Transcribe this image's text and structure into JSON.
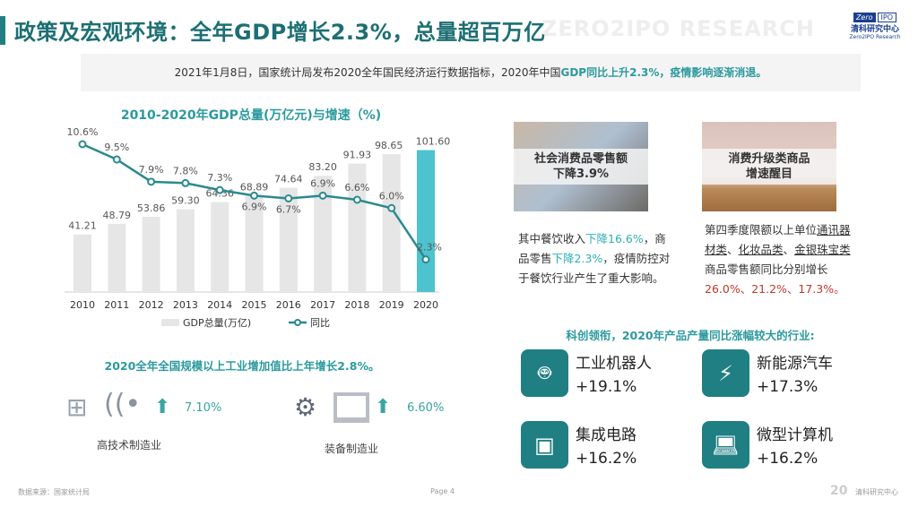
{
  "header": {
    "watermark": "ZERO2IPO RESEARCH",
    "title_part1": "政策及宏观环境：",
    "title_part2": "全年GDP增长2.3%，总量超百万亿",
    "logo": {
      "left": "Zero",
      "right": "IPO",
      "cn": "清科研究中心",
      "en": "Zero2IPO Research"
    }
  },
  "banner": {
    "text": "2021年1月8日，国家统计局发布2020全年国民经济运行数据指标，2020年中国",
    "highlight": "GDP同比上升2.3%，疫情影响逐渐消退。"
  },
  "chart_data": {
    "type": "bar",
    "title": "2010-2020年GDP总量(万亿元)与增速（%)",
    "categories": [
      "2010",
      "2011",
      "2012",
      "2013",
      "2014",
      "2015",
      "2016",
      "2017",
      "2018",
      "2019",
      "2020"
    ],
    "series": [
      {
        "name": "GDP总量(万亿)",
        "type": "bar",
        "values": [
          41.21,
          48.79,
          53.86,
          59.3,
          64.36,
          68.89,
          74.64,
          83.2,
          91.93,
          98.65,
          101.6
        ],
        "labels": [
          "41.21",
          "48.79",
          "53.86",
          "59.30",
          "64.36",
          "68.89",
          "74.64",
          "83.20",
          "91.93",
          "98.65",
          "101.60"
        ],
        "color": "#e6e6e6",
        "highlight_color": "#4ec3cf"
      },
      {
        "name": "同比",
        "type": "line",
        "values": [
          10.6,
          9.5,
          7.9,
          7.8,
          7.3,
          6.9,
          6.7,
          6.9,
          6.6,
          6.0,
          2.3
        ],
        "labels": [
          "10.6%",
          "9.5%",
          "7.9%",
          "7.8%",
          "7.3%",
          "6.9%",
          "6.7%",
          "6.9%",
          "6.6%",
          "6.0%",
          "2.3%"
        ],
        "color": "#2a8a8e"
      }
    ],
    "legend_position": "bottom"
  },
  "cards": [
    {
      "caption_line1": "社会消费品零售额",
      "caption_line2": "下降3.9%"
    },
    {
      "caption_line1": "消费升级类商品",
      "caption_line2": "增速醒目"
    }
  ],
  "desc1": {
    "t1": "其中餐饮收入",
    "h1": "下降16.6%",
    "t2": "，商品零售",
    "h2": "下降2.3%",
    "t3": "，疫情防控对于餐饮行业产生了重大影响。"
  },
  "desc2": {
    "t1": "第四季度限额以上单位",
    "u1": "通讯器材类",
    "s1": "、",
    "u2": "化妆品类",
    "s2": "、",
    "u3": "金银珠宝类",
    "t2": "商品零售额同比分别增长",
    "r1": "26.0%、21.2%、17.3%。"
  },
  "industry": {
    "title": "2020全年全国规模以上工业增加值比上年增长2.8%。",
    "items": [
      {
        "label": "高技术制造业",
        "value": "7.10%"
      },
      {
        "label": "装备制造业",
        "value": "6.60%"
      }
    ]
  },
  "products": {
    "title": "科创领衔，2020年产品产量同比涨幅较大的行业:",
    "items": [
      {
        "name": "工业机器人",
        "value": "+19.1%",
        "icon": "robot-icon"
      },
      {
        "name": "新能源汽车",
        "value": "+17.3%",
        "icon": "lightning-icon"
      },
      {
        "name": "集成电路",
        "value": "+16.2%",
        "icon": "chip-icon"
      },
      {
        "name": "微型计算机",
        "value": "+16.2%",
        "icon": "laptop-icon"
      }
    ]
  },
  "footer": {
    "source": "数据来源：国家统计局",
    "page_label": "Page",
    "page_num": "4",
    "brand": "清科研究中心",
    "brand_mark": "20"
  }
}
